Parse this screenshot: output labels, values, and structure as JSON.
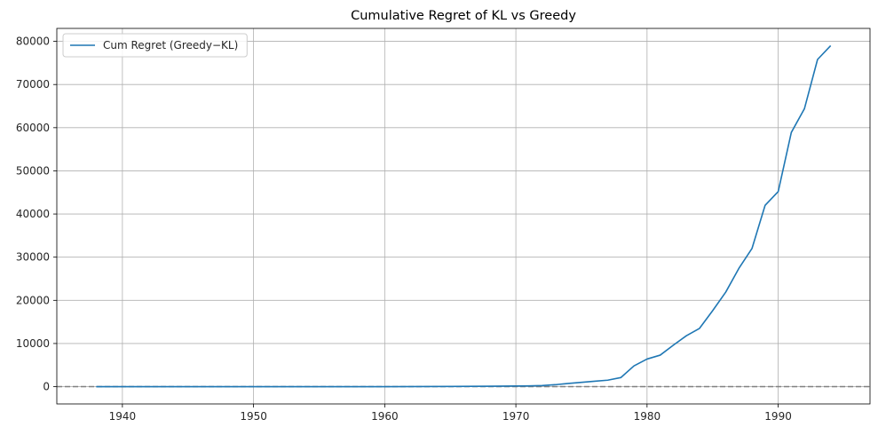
{
  "chart_data": {
    "type": "line",
    "title": "Cumulative Regret of KL vs Greedy",
    "xlabel": "",
    "ylabel": "",
    "xlim": [
      1935,
      1997
    ],
    "ylim": [
      -4000,
      83000
    ],
    "x_ticks": [
      1940,
      1950,
      1960,
      1970,
      1980,
      1990
    ],
    "y_ticks": [
      0,
      10000,
      20000,
      30000,
      40000,
      50000,
      60000,
      70000,
      80000
    ],
    "grid": true,
    "legend_position": "top-left",
    "reference_line": {
      "y": 0,
      "style": "dashed",
      "color": "#808080"
    },
    "series": [
      {
        "name": "Cum Regret (Greedy−KL)",
        "color": "#1f77b4",
        "x": [
          1938,
          1940,
          1945,
          1950,
          1955,
          1960,
          1965,
          1968,
          1970,
          1971,
          1972,
          1973,
          1974,
          1975,
          1976,
          1977,
          1978,
          1979,
          1980,
          1981,
          1982,
          1983,
          1984,
          1985,
          1986,
          1987,
          1988,
          1989,
          1990,
          1991,
          1992,
          1993,
          1994
        ],
        "y": [
          0,
          0,
          0,
          0,
          0,
          0,
          50,
          100,
          150,
          180,
          250,
          450,
          750,
          1000,
          1250,
          1500,
          2100,
          4800,
          6400,
          7300,
          9600,
          11800,
          13500,
          17600,
          21900,
          27400,
          32000,
          42000,
          45200,
          58900,
          64400,
          75800,
          79000
        ]
      }
    ]
  }
}
